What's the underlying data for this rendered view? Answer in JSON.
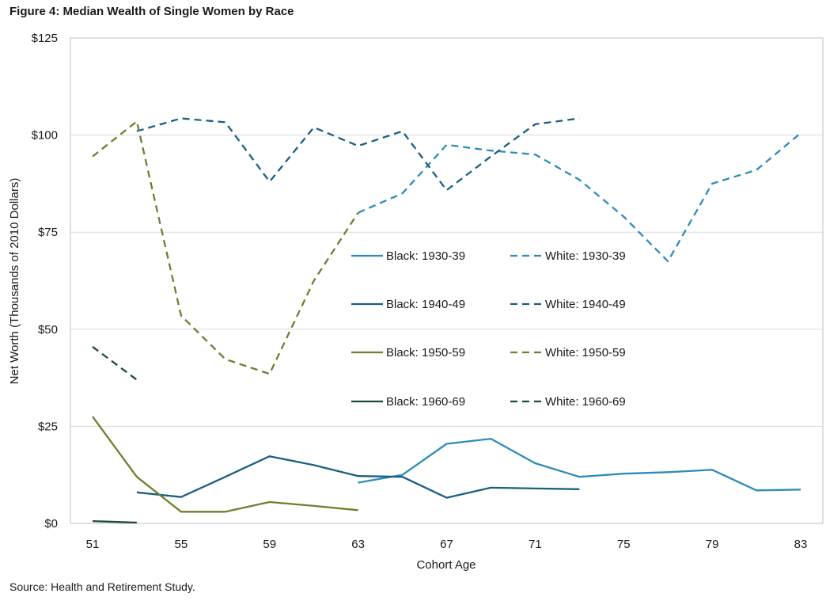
{
  "figure": {
    "title": "Figure 4: Median Wealth of Single Women by Race",
    "source": "Source: Health and Retirement Study."
  },
  "chart_data": {
    "type": "line",
    "xlabel": "Cohort Age",
    "ylabel": "Net Worth (Thousands of 2010 Dollars)",
    "xlim": [
      50,
      84
    ],
    "ylim": [
      0,
      125
    ],
    "xticks": [
      51,
      55,
      59,
      63,
      67,
      71,
      75,
      79,
      83
    ],
    "yticks": [
      0,
      25,
      50,
      75,
      100,
      125
    ],
    "ytick_labels": [
      "$0",
      "$25",
      "$50",
      "$75",
      "$100",
      "$125"
    ],
    "grid": "horizontal",
    "legend_position": "center",
    "series": [
      {
        "name": "Black: 1930-39",
        "color": "#2E8CB8",
        "dash": false,
        "points": [
          [
            63,
            10.5
          ],
          [
            65,
            12.5
          ],
          [
            67,
            20.5
          ],
          [
            69,
            21.8
          ],
          [
            71,
            15.5
          ],
          [
            73,
            12
          ],
          [
            75,
            12.8
          ],
          [
            77,
            13.2
          ],
          [
            79,
            13.8
          ],
          [
            81,
            8.5
          ],
          [
            83,
            8.7
          ]
        ]
      },
      {
        "name": "White: 1930-39",
        "color": "#2E8CB8",
        "dash": true,
        "points": [
          [
            63,
            80
          ],
          [
            65,
            85
          ],
          [
            67,
            97.5
          ],
          [
            69,
            96
          ],
          [
            71,
            95
          ],
          [
            73,
            88.5
          ],
          [
            75,
            79
          ],
          [
            77,
            67.5
          ],
          [
            79,
            87.5
          ],
          [
            81,
            91
          ],
          [
            83,
            100.5
          ]
        ]
      },
      {
        "name": "Black: 1940-49",
        "color": "#1B5F82",
        "dash": false,
        "points": [
          [
            53,
            8
          ],
          [
            55,
            6.8
          ],
          [
            57,
            12
          ],
          [
            59,
            17.3
          ],
          [
            61,
            15
          ],
          [
            63,
            12.2
          ],
          [
            65,
            12
          ],
          [
            67,
            6.6
          ],
          [
            69,
            9.2
          ],
          [
            71,
            9
          ],
          [
            73,
            8.8
          ]
        ]
      },
      {
        "name": "White: 1940-49",
        "color": "#1B5F82",
        "dash": true,
        "points": [
          [
            53,
            101
          ],
          [
            55,
            104.3
          ],
          [
            57,
            103.3
          ],
          [
            59,
            88
          ],
          [
            61,
            102
          ],
          [
            63,
            97.2
          ],
          [
            65,
            101
          ],
          [
            67,
            85.8
          ],
          [
            69,
            94.5
          ],
          [
            71,
            102.8
          ],
          [
            73,
            104.3
          ]
        ]
      },
      {
        "name": "Black: 1950-59",
        "color": "#6E7F2E",
        "dash": false,
        "points": [
          [
            51,
            27.5
          ],
          [
            53,
            12
          ],
          [
            55,
            3
          ],
          [
            57,
            3
          ],
          [
            59,
            5.5
          ],
          [
            61,
            4.5
          ],
          [
            63,
            3.4
          ]
        ]
      },
      {
        "name": "White: 1950-59",
        "color": "#6E7F2E",
        "dash": true,
        "points": [
          [
            51,
            94.5
          ],
          [
            53,
            103.5
          ],
          [
            55,
            53.5
          ],
          [
            57,
            42.3
          ],
          [
            59,
            38.5
          ],
          [
            61,
            62.5
          ],
          [
            63,
            80
          ]
        ]
      },
      {
        "name": "Black: 1960-69",
        "color": "#1E4A3A",
        "dash": false,
        "points": [
          [
            51,
            0.6
          ],
          [
            53,
            0.2
          ]
        ]
      },
      {
        "name": "White: 1960-69",
        "color": "#1E4A3A",
        "dash": true,
        "points": [
          [
            51,
            45.5
          ],
          [
            53,
            37
          ]
        ]
      }
    ]
  }
}
